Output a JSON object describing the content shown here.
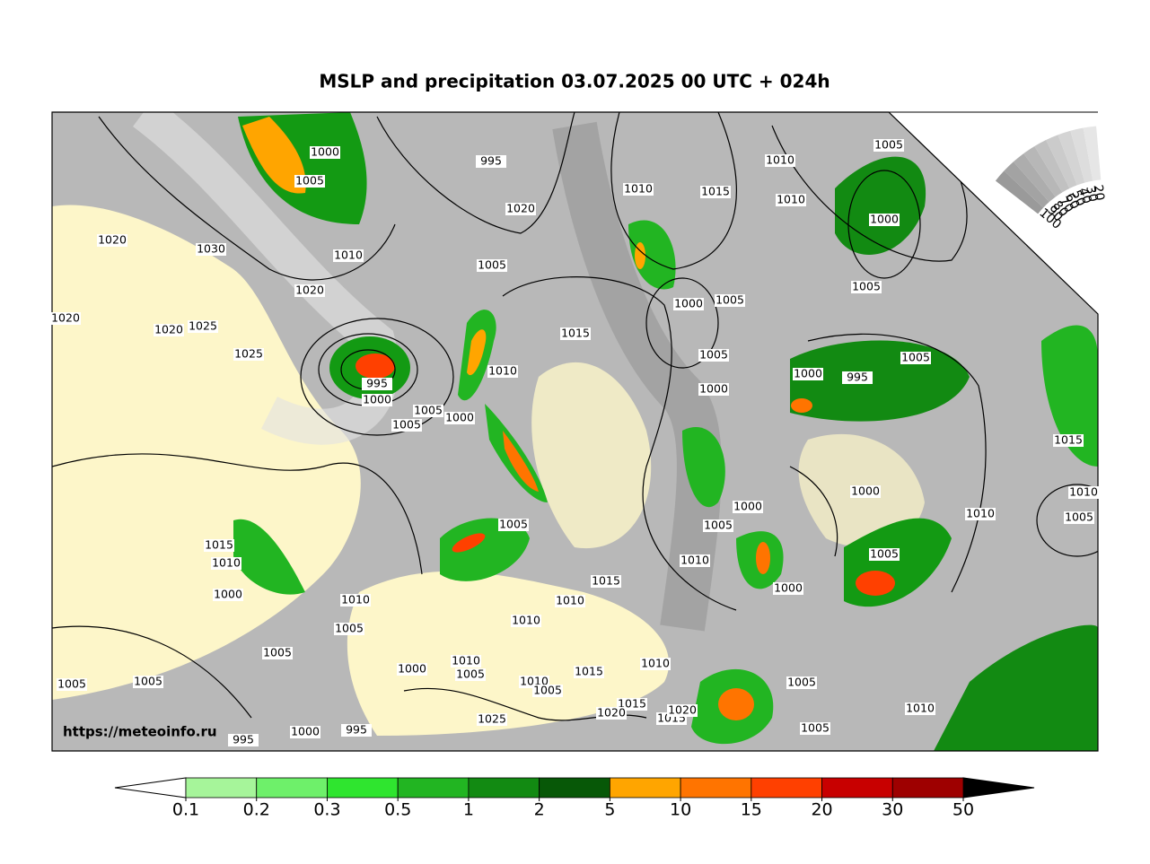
{
  "title": "MSLP and precipitation 03.07.2025 00 UTC + 024h",
  "credit": "https://meteoinfo.ru",
  "colorbar": {
    "ticks": [
      0.1,
      0.2,
      0.3,
      0.5,
      1,
      2,
      5,
      10,
      15,
      20,
      30,
      50
    ],
    "colors": [
      "#a6f59a",
      "#6ef06a",
      "#2fe52f",
      "#22b522",
      "#128a12",
      "#075807",
      "#ffa500",
      "#ff7400",
      "#ff4000",
      "#c80000",
      "#9e0000"
    ],
    "under_color": "#ffffff",
    "over_color": "#000000"
  },
  "cloud_scale": {
    "ticks": [
      100,
      90,
      80,
      70,
      60,
      50,
      40,
      30,
      20
    ],
    "colors": [
      "#9a9a9a",
      "#a3a3a3",
      "#adadad",
      "#b7b7b7",
      "#c1c1c1",
      "#cbcbcb",
      "#d4d4d4",
      "#dddddd",
      "#e6e6e6"
    ]
  },
  "isobar_labels": [
    1000,
    1005,
    995,
    1020,
    1030,
    1010,
    1020,
    1005,
    1020,
    1020,
    1020,
    1025,
    1025,
    995,
    1000,
    1005,
    1005,
    1000,
    1010,
    1015,
    1010,
    1015,
    1010,
    1010,
    1005,
    1000,
    1005,
    1000,
    1005,
    1005,
    1000,
    1000,
    995,
    1005,
    1015,
    1010,
    1005,
    1010,
    1000,
    1000,
    1005,
    1010,
    1000,
    1005,
    1005,
    1015,
    1010,
    1000,
    1010,
    1005,
    1010,
    1015,
    1010,
    1005,
    1005,
    1005,
    1000,
    1010,
    1005,
    1015,
    1010,
    1010,
    1005,
    1005,
    1015,
    1020,
    1015,
    1020,
    1025,
    1010,
    1005,
    995,
    1000,
    995
  ]
}
